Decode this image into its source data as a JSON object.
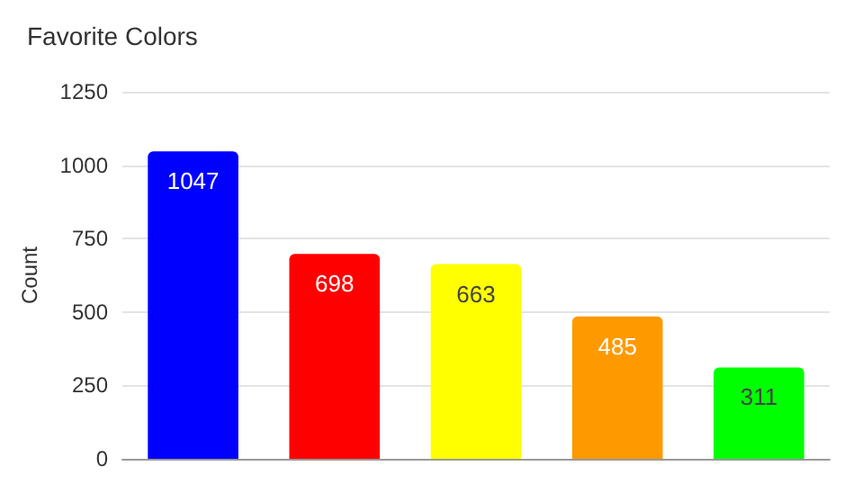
{
  "chart_data": {
    "type": "bar",
    "title": "Favorite Colors",
    "ylabel": "Count",
    "categories": [
      null,
      null,
      null,
      null,
      null
    ],
    "values": [
      1047,
      698,
      663,
      485,
      311
    ],
    "colors": [
      "#0000ff",
      "#ff0000",
      "#ffff00",
      "#ff9900",
      "#00ff00"
    ],
    "ylim": [
      0,
      1250
    ],
    "yticks": [
      0,
      250,
      500,
      750,
      1000,
      1250
    ],
    "grid": "y",
    "data_labels": true
  }
}
